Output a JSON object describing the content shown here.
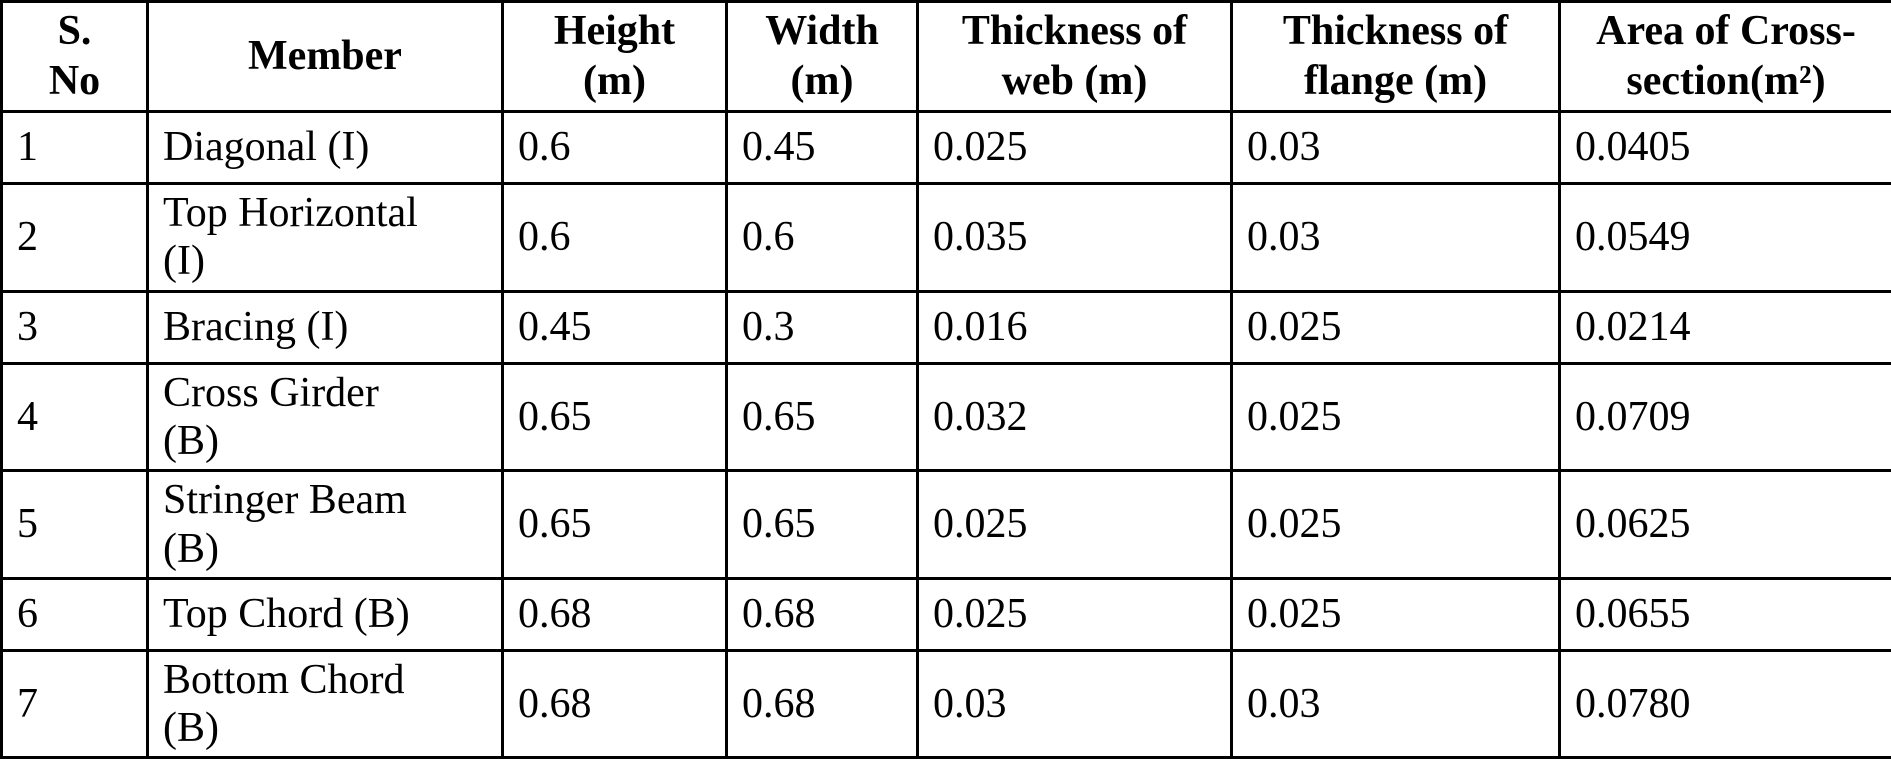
{
  "colors": {
    "border": "#000000",
    "background": "#ffffff",
    "text": "#000000"
  },
  "table": {
    "columns": [
      "S.\nNo",
      "Member",
      "Height\n(m)",
      "Width\n(m)",
      "Thickness of\nweb (m)",
      "Thickness of\nflange (m)",
      "Area of Cross-\nsection(m²)"
    ],
    "rows": [
      [
        "1",
        "Diagonal (I)",
        "0.6",
        "0.45",
        "0.025",
        "0.03",
        "0.0405"
      ],
      [
        "2",
        "Top Horizontal\n(I)",
        "0.6",
        "0.6",
        "0.035",
        "0.03",
        "0.0549"
      ],
      [
        "3",
        "Bracing (I)",
        "0.45",
        "0.3",
        "0.016",
        "0.025",
        "0.0214"
      ],
      [
        "4",
        "Cross Girder\n(B)",
        "0.65",
        "0.65",
        "0.032",
        "0.025",
        "0.0709"
      ],
      [
        "5",
        "Stringer Beam\n(B)",
        "0.65",
        "0.65",
        "0.025",
        "0.025",
        "0.0625"
      ],
      [
        "6",
        "Top Chord (B)",
        "0.68",
        "0.68",
        "0.025",
        "0.025",
        "0.0655"
      ],
      [
        "7",
        "Bottom Chord\n(B)",
        "0.68",
        "0.68",
        "0.03",
        "0.03",
        "0.0780"
      ]
    ]
  }
}
